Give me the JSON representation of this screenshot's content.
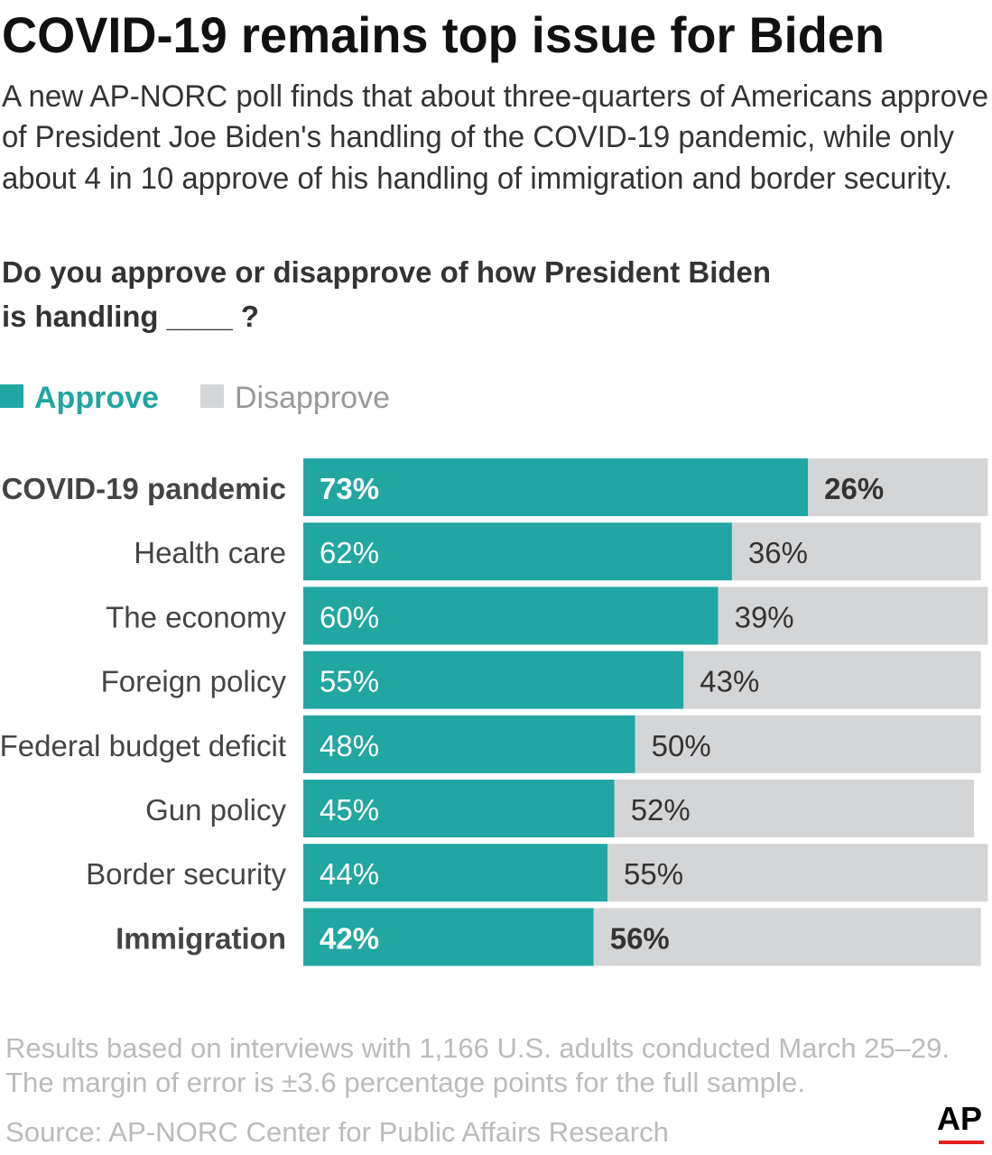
{
  "chart_data": {
    "type": "stacked-bar-horizontal",
    "title": "COVID-19 remains top issue for Biden",
    "subtitle": [
      "A new AP-NORC poll finds that about three-quarters of Americans approve",
      "of President Joe Biden's handling of the COVID-19 pandemic, while only",
      "about 4 in 10 approve of his handling of immigration and border security."
    ],
    "question": [
      "Do you approve or disapprove of how President Biden",
      "is handling ____ ?"
    ],
    "categories": [
      "COVID-19 pandemic",
      "Health care",
      "The economy",
      "Foreign policy",
      "Federal budget deficit",
      "Gun policy",
      "Border security",
      "Immigration"
    ],
    "series": [
      {
        "name": "Approve",
        "color": "#21a6a2",
        "values": [
          73,
          62,
          60,
          55,
          48,
          45,
          44,
          42
        ],
        "value_labels": [
          "73%",
          "62%",
          "60%",
          "55%",
          "48%",
          "45%",
          "44%",
          "42%"
        ]
      },
      {
        "name": "Disapprove",
        "color": "#d4d5d7",
        "values": [
          26,
          36,
          39,
          43,
          50,
          52,
          55,
          56
        ],
        "value_labels": [
          "26%",
          "36%",
          "39%",
          "43%",
          "50%",
          "52%",
          "55%",
          "56%"
        ]
      }
    ],
    "notes": [
      "Results based on interviews with 1,166 U.S. adults conducted March 25–29.",
      "The margin of error is ±3.6 percentage points for the full sample."
    ],
    "source": "Source: AP-NORC Center for Public Affairs Research",
    "logo": "AP"
  }
}
